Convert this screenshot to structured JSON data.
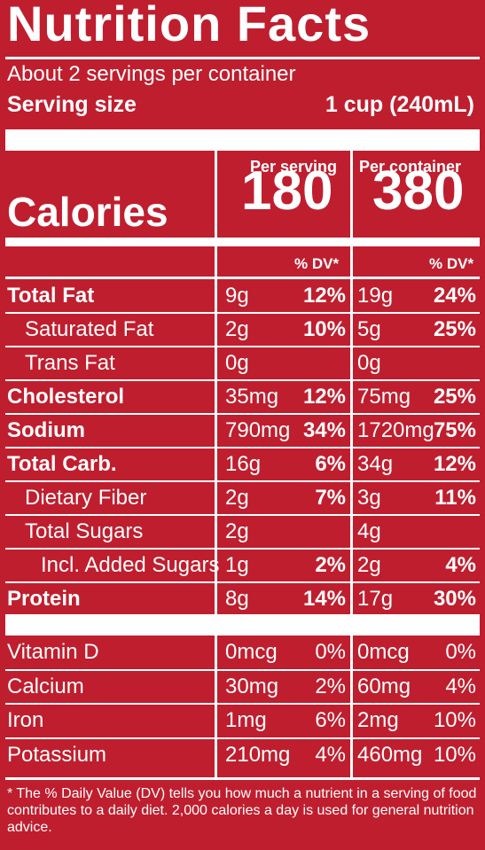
{
  "header": {
    "title": "Nutrition Facts",
    "servings": "About 2 servings per container",
    "serving_size_label": "Serving size",
    "serving_size_value": "1 cup (240mL)"
  },
  "columns": {
    "per_serving": "Per serving",
    "per_container": "Per container",
    "dv_label": "% DV*"
  },
  "calories": {
    "label": "Calories",
    "per_serving": "180",
    "per_container": "380"
  },
  "nutrients": [
    {
      "name": "Total Fat",
      "bold": true,
      "indent": 0,
      "s_amt": "9g",
      "s_pct": "12%",
      "c_amt": "19g",
      "c_pct": "24%"
    },
    {
      "name": "Saturated Fat",
      "bold": false,
      "indent": 1,
      "s_amt": "2g",
      "s_pct": "10%",
      "c_amt": "5g",
      "c_pct": "25%"
    },
    {
      "name": "Trans Fat",
      "bold": false,
      "indent": 1,
      "s_amt": "0g",
      "s_pct": "",
      "c_amt": "0g",
      "c_pct": ""
    },
    {
      "name": "Cholesterol",
      "bold": true,
      "indent": 0,
      "s_amt": "35mg",
      "s_pct": "12%",
      "c_amt": "75mg",
      "c_pct": "25%"
    },
    {
      "name": "Sodium",
      "bold": true,
      "indent": 0,
      "s_amt": "790mg",
      "s_pct": "34%",
      "c_amt": "1720mg",
      "c_pct": "75%"
    },
    {
      "name": "Total Carb.",
      "bold": true,
      "indent": 0,
      "s_amt": "16g",
      "s_pct": "6%",
      "c_amt": "34g",
      "c_pct": "12%"
    },
    {
      "name": "Dietary Fiber",
      "bold": false,
      "indent": 1,
      "s_amt": "2g",
      "s_pct": "7%",
      "c_amt": "3g",
      "c_pct": "11%"
    },
    {
      "name": "Total Sugars",
      "bold": false,
      "indent": 1,
      "s_amt": "2g",
      "s_pct": "",
      "c_amt": "4g",
      "c_pct": ""
    },
    {
      "name": "Incl. Added Sugars",
      "bold": false,
      "indent": 2,
      "s_amt": "1g",
      "s_pct": "2%",
      "c_amt": "2g",
      "c_pct": "4%"
    },
    {
      "name": "Protein",
      "bold": true,
      "indent": 0,
      "s_amt": "8g",
      "s_pct": "14%",
      "c_amt": "17g",
      "c_pct": "30%"
    }
  ],
  "vitamins": [
    {
      "name": "Vitamin D",
      "s_amt": "0mcg",
      "s_pct": "0%",
      "c_amt": "0mcg",
      "c_pct": "0%"
    },
    {
      "name": "Calcium",
      "s_amt": "30mg",
      "s_pct": "2%",
      "c_amt": "60mg",
      "c_pct": "4%"
    },
    {
      "name": "Iron",
      "s_amt": "1mg",
      "s_pct": "6%",
      "c_amt": "2mg",
      "c_pct": "10%"
    },
    {
      "name": "Potassium",
      "s_amt": "210mg",
      "s_pct": "4%",
      "c_amt": "460mg",
      "c_pct": "10%"
    }
  ],
  "footnote": "* The % Daily Value (DV) tells you how much a nutrient in a serving of food contributes to a daily diet. 2,000 calories a day is used for general nutrition advice.",
  "colors": {
    "background": "#bf1e2e",
    "foreground": "#ffffff"
  }
}
